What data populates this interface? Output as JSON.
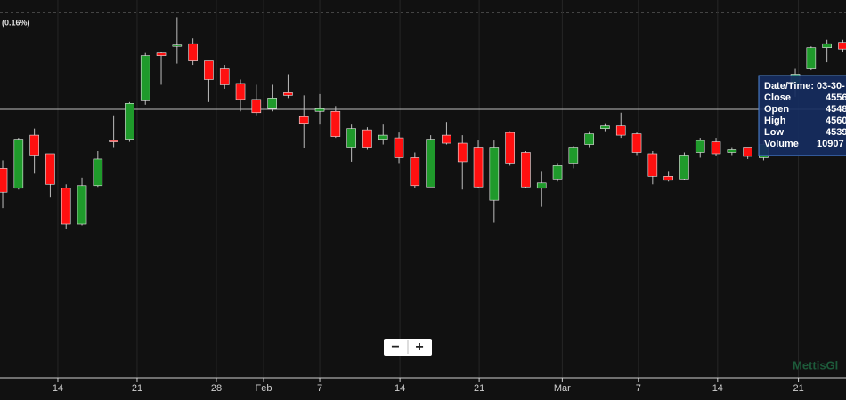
{
  "chart_data": {
    "type": "candlestick",
    "header_change": "(0.16%)",
    "watermark": "MettisGl",
    "up_color": "#1f9a2b",
    "down_color": "#ff1010",
    "xlim": [
      -0.17,
      53.2
    ],
    "ylim": [
      4327,
      4612
    ],
    "grid": true,
    "xticks": [
      {
        "value": 3.48,
        "label": "14"
      },
      {
        "value": 8.48,
        "label": "21"
      },
      {
        "value": 13.48,
        "label": "28"
      },
      {
        "value": 16.46,
        "label": "Feb"
      },
      {
        "value": 20,
        "label": "7"
      },
      {
        "value": 25.06,
        "label": "14"
      },
      {
        "value": 30.06,
        "label": "21"
      },
      {
        "value": 35.3,
        "label": "Mar"
      },
      {
        "value": 40.1,
        "label": "7"
      },
      {
        "value": 45.1,
        "label": "14"
      },
      {
        "value": 50.2,
        "label": "21"
      }
    ],
    "x": [
      0,
      1,
      2,
      3,
      4,
      5,
      6,
      7,
      8,
      9,
      10,
      11,
      12,
      13,
      14,
      15,
      16,
      17,
      18,
      19,
      20,
      21,
      22,
      23,
      24,
      25,
      26,
      27,
      28,
      29,
      30,
      31,
      32,
      33,
      34,
      35,
      36,
      37,
      38,
      39,
      40,
      41,
      42,
      43,
      44,
      45,
      46,
      47,
      48,
      50,
      51,
      52,
      53
    ],
    "open": [
      4485,
      4470,
      4510,
      4496,
      4470,
      4443,
      4472,
      4506,
      4507,
      4536,
      4572,
      4577,
      4579,
      4566,
      4560,
      4549,
      4537,
      4530,
      4542,
      4524,
      4528,
      4528,
      4501,
      4514,
      4507,
      4508,
      4493,
      4471,
      4510,
      4504,
      4501,
      4461,
      4512,
      4497,
      4470,
      4477,
      4489,
      4503,
      4515,
      4517,
      4511,
      4496,
      4479,
      4477,
      4497,
      4505,
      4497,
      4501,
      4493,
      4548,
      4560,
      4576,
      4580
    ],
    "high": [
      4491,
      4508,
      4515,
      4496,
      4473,
      4478,
      4498,
      4525,
      4535,
      4572,
      4573,
      4599,
      4583,
      4566,
      4563,
      4552,
      4548,
      4548,
      4556,
      4540,
      4541,
      4532,
      4518,
      4516,
      4518,
      4512,
      4497,
      4510,
      4520,
      4510,
      4506,
      4506,
      4513,
      4498,
      4483,
      4489,
      4502,
      4513,
      4519,
      4527,
      4512,
      4498,
      4483,
      4497,
      4508,
      4508,
      4501,
      4501,
      4506,
      4560,
      4577,
      4582,
      4582
    ],
    "low": [
      4455,
      4469,
      4481,
      4463,
      4439,
      4442,
      4471,
      4501,
      4505,
      4533,
      4548,
      4564,
      4563,
      4535,
      4545,
      4528,
      4525,
      4528,
      4538,
      4500,
      4518,
      4508,
      4490,
      4499,
      4503,
      4489,
      4470,
      4471,
      4503,
      4469,
      4470,
      4444,
      4487,
      4470,
      4456,
      4475,
      4485,
      4501,
      4513,
      4508,
      4495,
      4473,
      4475,
      4476,
      4493,
      4494,
      4495,
      4492,
      4491,
      4539,
      4559,
      4565,
      4573
    ],
    "close": [
      4467,
      4507,
      4495,
      4473,
      4443,
      4472,
      4492,
      4505,
      4534,
      4570,
      4570,
      4578,
      4566,
      4552,
      4548,
      4537,
      4527,
      4538,
      4540,
      4519,
      4530,
      4509,
      4515,
      4501,
      4510,
      4493,
      4472,
      4507,
      4504,
      4490,
      4471,
      4501,
      4489,
      4471,
      4474,
      4487,
      4501,
      4511,
      4517,
      4510,
      4497,
      4479,
      4476,
      4495,
      4506,
      4496,
      4499,
      4494,
      4503,
      4556,
      4576,
      4579,
      4575
    ],
    "tooltip": {
      "rows": [
        {
          "label": "Date/Time:",
          "value": "03-30-"
        },
        {
          "label": "Close",
          "value": "4556"
        },
        {
          "label": "Open",
          "value": "4548"
        },
        {
          "label": "High",
          "value": "4560"
        },
        {
          "label": "Low",
          "value": "4539"
        },
        {
          "label": "Volume",
          "value": "10907"
        }
      ]
    },
    "zoom": {
      "minus": "−",
      "plus": "+"
    }
  }
}
